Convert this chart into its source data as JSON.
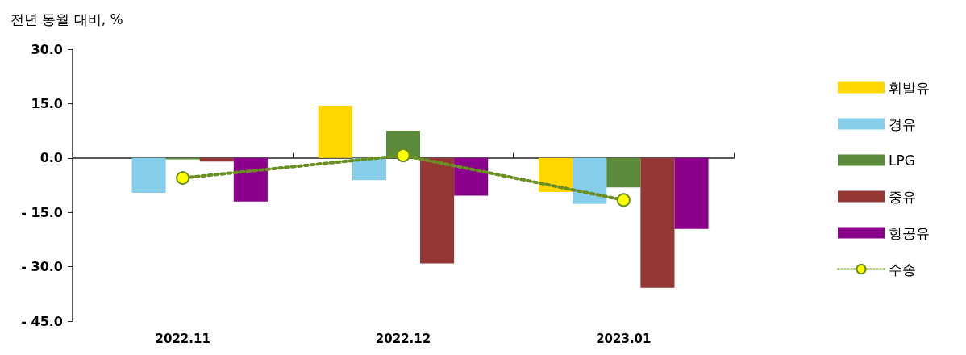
{
  "chart_data": {
    "type": "bar",
    "ylabel": "전년 동월 대비, %",
    "categories": [
      "2022.11",
      "2022.12",
      "2023.01"
    ],
    "series": [
      {
        "name": "휘발유",
        "color": "#ffd700",
        "values": [
          0,
          14.4,
          -9.4
        ]
      },
      {
        "name": "경유",
        "color": "#87ceeb",
        "values": [
          -9.6,
          -6.1,
          -12.7
        ]
      },
      {
        "name": "LPG",
        "color": "#5b8a3a",
        "values": [
          -0.4,
          7.5,
          -8.1
        ]
      },
      {
        "name": "중유",
        "color": "#943634",
        "values": [
          -1.0,
          -29.1,
          -35.8
        ]
      },
      {
        "name": "항공유",
        "color": "#8b008b",
        "values": [
          -12.0,
          -10.4,
          -19.6
        ]
      },
      {
        "name": "수송",
        "type": "line",
        "color": "#6b8e23",
        "colors": [
          "#ffff00",
          "#ffff00",
          "#ffff00"
        ],
        "marker": "circle",
        "line_style": "dotted",
        "values": [
          -5.5,
          0.7,
          -11.6
        ]
      }
    ],
    "ylim": [
      -45,
      30
    ],
    "yticks": [
      {
        "value": -45,
        "label": "- 45.0"
      },
      {
        "value": -30,
        "label": "- 30.0"
      },
      {
        "value": -15,
        "label": "- 15.0"
      },
      {
        "value": 0,
        "label": "0.0"
      },
      {
        "value": 15,
        "label": "15.0"
      },
      {
        "value": 30,
        "label": "30.0"
      }
    ],
    "legend": "right"
  }
}
